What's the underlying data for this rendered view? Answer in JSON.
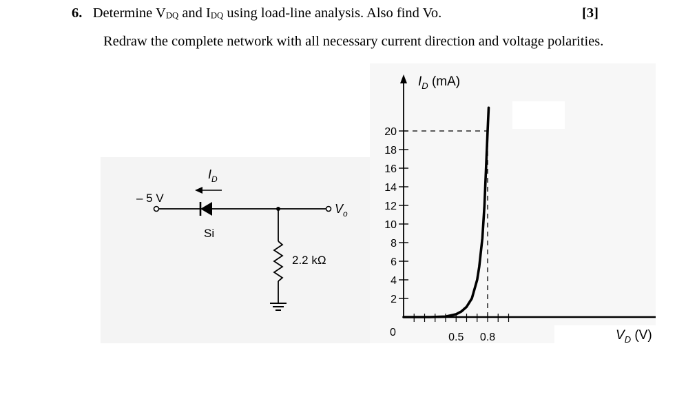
{
  "question": {
    "number": "6.",
    "text_parts": [
      "Determine V",
      "DQ",
      " and I",
      "DQ",
      " using load-line analysis. Also find Vo."
    ],
    "marks": "[3]",
    "instruction": "Redraw the complete network with all necessary current direction and voltage polarities."
  },
  "circuit": {
    "source_voltage": "– 5 V",
    "current_label": "I",
    "current_label_sub": "D",
    "diode_material": "Si",
    "resistor": "2.2 kΩ",
    "output_label": "V",
    "output_label_sub": "o"
  },
  "chart_data": {
    "type": "line",
    "ylabel_main": "I",
    "ylabel_sub": "D",
    "ylabel_unit": " (mA)",
    "xlabel_main": "V",
    "xlabel_sub": "D",
    "xlabel_unit": " (V)",
    "origin_label": "0",
    "y_ticks": [
      2,
      4,
      6,
      8,
      10,
      12,
      14,
      16,
      18,
      20
    ],
    "x_tick_labels": [
      "0.5",
      "0.8"
    ],
    "x_tick_values": [
      0.5,
      0.8
    ],
    "ylim": [
      0,
      20
    ],
    "series": [
      {
        "x": [
          0.0,
          0.25,
          0.4,
          0.5,
          0.55,
          0.6,
          0.65,
          0.7,
          0.72,
          0.75,
          0.77,
          0.8,
          0.81
        ],
        "y": [
          0.0,
          0.0,
          0.05,
          0.3,
          0.6,
          1.1,
          2.0,
          4.0,
          5.4,
          8.5,
          12.0,
          20.0,
          22.5
        ]
      }
    ],
    "reference_lines": [
      {
        "from": [
          0,
          20
        ],
        "to": [
          0.8,
          20
        ],
        "style": "dashed"
      },
      {
        "from": [
          0.8,
          0
        ],
        "to": [
          0.8,
          20
        ],
        "style": "dashed"
      }
    ]
  }
}
